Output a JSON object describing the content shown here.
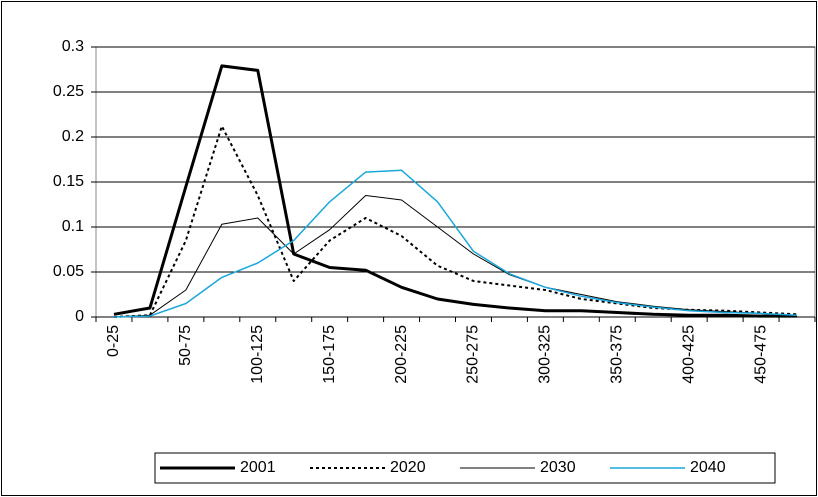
{
  "chart_data": {
    "type": "line",
    "categories": [
      "0-25",
      null,
      "50-75",
      null,
      "100-125",
      null,
      "150-175",
      null,
      "200-225",
      null,
      "250-275",
      null,
      "300-325",
      null,
      "350-375",
      null,
      "400-425",
      null,
      "450-475",
      null
    ],
    "series": [
      {
        "name": "2001",
        "color": "#000000",
        "width": 3,
        "dash": "none",
        "values": [
          0.003,
          0.01,
          0.145,
          0.279,
          0.274,
          0.07,
          0.055,
          0.052,
          0.033,
          0.02,
          0.014,
          0.01,
          0.007,
          0.007,
          0.005,
          0.003,
          0.002,
          0.002,
          0.001,
          0.001
        ]
      },
      {
        "name": "2020",
        "color": "#000000",
        "width": 2,
        "dash": "3,3",
        "values": [
          0,
          0.002,
          0.085,
          0.212,
          0.135,
          0.04,
          0.085,
          0.11,
          0.09,
          0.057,
          0.04,
          0.035,
          0.03,
          0.02,
          0.015,
          0.01,
          0.008,
          0.007,
          0.005,
          0.003
        ]
      },
      {
        "name": "2030",
        "color": "#000000",
        "width": 1,
        "dash": "none",
        "values": [
          0,
          0.002,
          0.03,
          0.103,
          0.11,
          0.07,
          0.097,
          0.135,
          0.13,
          0.1,
          0.07,
          0.047,
          0.033,
          0.025,
          0.017,
          0.012,
          0.008,
          0.006,
          0.004,
          0.002
        ]
      },
      {
        "name": "2040",
        "color": "#1aa7dc",
        "width": 1.5,
        "dash": "none",
        "values": [
          0,
          0.001,
          0.015,
          0.044,
          0.06,
          0.085,
          0.128,
          0.161,
          0.163,
          0.128,
          0.073,
          0.048,
          0.033,
          0.023,
          0.016,
          0.011,
          0.007,
          0.005,
          0.004,
          0.002
        ]
      }
    ],
    "ylim": [
      0,
      0.3
    ],
    "yticks": [
      0,
      0.05,
      0.1,
      0.15,
      0.2,
      0.25,
      0.3
    ],
    "grid": true,
    "legend": "bottom"
  }
}
